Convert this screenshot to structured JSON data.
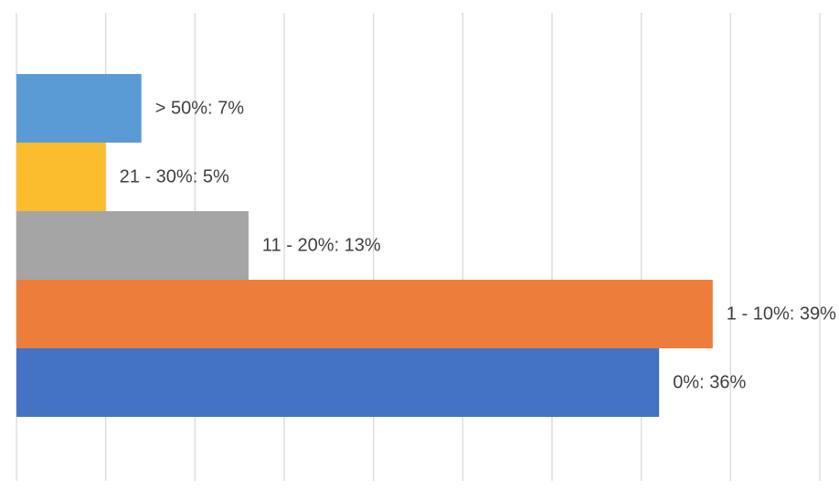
{
  "chart_data": {
    "type": "bar",
    "orientation": "horizontal",
    "categories": [
      "> 50%",
      "21 - 30%",
      "11 - 20%",
      "1 - 10%",
      "0%"
    ],
    "values": [
      7,
      5,
      13,
      39,
      36
    ],
    "data_labels": [
      "> 50%: 7%",
      "21 - 30%: 5%",
      "11 - 20%: 13%",
      "1 - 10%: 39%",
      "0%: 36%"
    ],
    "colors": [
      "#5b9bd5",
      "#fbbc2e",
      "#a5a5a5",
      "#ed7d3b",
      "#4472c4"
    ],
    "xlim": [
      0,
      45
    ],
    "x_grid_step": 5,
    "grid": true,
    "legend": "none",
    "title": "",
    "xlabel": "",
    "ylabel": ""
  }
}
